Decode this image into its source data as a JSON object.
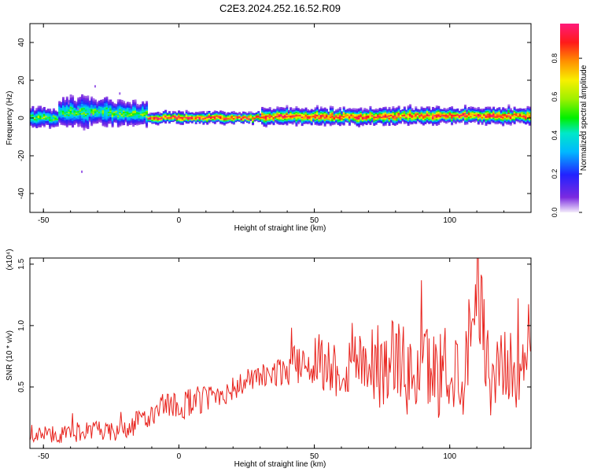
{
  "figure": {
    "title": "C2E3.2024.252.16.52.R09"
  },
  "colorbar": {
    "label": "Normalized spectral amplitude",
    "ticks": [
      "0.0",
      "0.2",
      "0.4",
      "0.6",
      "0.8"
    ],
    "tick_values": [
      0.0,
      0.2,
      0.4,
      0.6,
      0.8
    ],
    "range": [
      0,
      0.98
    ]
  },
  "chart_data": [
    {
      "type": "heatmap",
      "title": "",
      "xlabel": "Height of straight line (km)",
      "ylabel": "Frequency (Hz)",
      "xlim": [
        -55,
        130
      ],
      "ylim": [
        -50,
        50
      ],
      "xticks": [
        -50,
        0,
        50,
        100
      ],
      "yticks": [
        -40,
        -20,
        0,
        20,
        40
      ],
      "colormap": "rainbow (magenta-red high, purple low)",
      "bands": [
        {
          "x": [
            -55,
            -45
          ],
          "f_center": 0,
          "half_width": 4,
          "peak_amp": 0.5
        },
        {
          "x": [
            -45,
            -25
          ],
          "f_center": 3,
          "half_width": 6,
          "peak_amp": 0.45
        },
        {
          "x": [
            -25,
            -12
          ],
          "f_center": 2,
          "half_width": 5,
          "peak_amp": 0.5
        },
        {
          "x": [
            -12,
            30
          ],
          "f_center": 0,
          "half_width": 2,
          "peak_amp": 0.95
        },
        {
          "x": [
            30,
            80
          ],
          "f_center": 0.5,
          "half_width": 3,
          "peak_amp": 0.9
        },
        {
          "x": [
            80,
            130
          ],
          "f_center": 1,
          "half_width": 3,
          "peak_amp": 0.9
        }
      ]
    },
    {
      "type": "line",
      "title": "",
      "xlabel": "Height of straight line (km)",
      "ylabel": "SNR (10 * v/v)",
      "y_multiplier": "(x10⁴)",
      "xlim": [
        -55,
        130
      ],
      "ylim": [
        0,
        1.55
      ],
      "xticks": [
        -50,
        0,
        50,
        100
      ],
      "yticks": [
        "0.5",
        "1.0",
        "1.5"
      ],
      "ytick_values": [
        0.5,
        1.0,
        1.5
      ],
      "series": [
        {
          "color": "#e8231d",
          "x": [
            -55,
            -50,
            -45,
            -40,
            -35,
            -30,
            -25,
            -20,
            -15,
            -10,
            -5,
            0,
            5,
            10,
            15,
            20,
            25,
            30,
            35,
            40,
            45,
            50,
            55,
            60,
            65,
            70,
            75,
            80,
            85,
            90,
            95,
            100,
            105,
            110,
            115,
            120,
            125,
            130
          ],
          "values": [
            0.1,
            0.12,
            0.11,
            0.12,
            0.15,
            0.14,
            0.13,
            0.14,
            0.22,
            0.27,
            0.32,
            0.35,
            0.38,
            0.4,
            0.45,
            0.48,
            0.55,
            0.58,
            0.6,
            0.65,
            0.7,
            0.72,
            0.68,
            0.62,
            0.72,
            0.75,
            0.6,
            0.8,
            0.55,
            0.7,
            0.6,
            0.65,
            0.6,
            1.4,
            0.55,
            0.7,
            0.6,
            0.75
          ],
          "amplitude": [
            0.05,
            0.07,
            0.07,
            0.08,
            0.08,
            0.08,
            0.08,
            0.09,
            0.1,
            0.1,
            0.12,
            0.12,
            0.12,
            0.12,
            0.12,
            0.1,
            0.1,
            0.1,
            0.1,
            0.14,
            0.18,
            0.22,
            0.24,
            0.24,
            0.26,
            0.3,
            0.32,
            0.34,
            0.34,
            0.36,
            0.36,
            0.36,
            0.36,
            0.36,
            0.34,
            0.3,
            0.28,
            0.18
          ]
        }
      ]
    }
  ]
}
